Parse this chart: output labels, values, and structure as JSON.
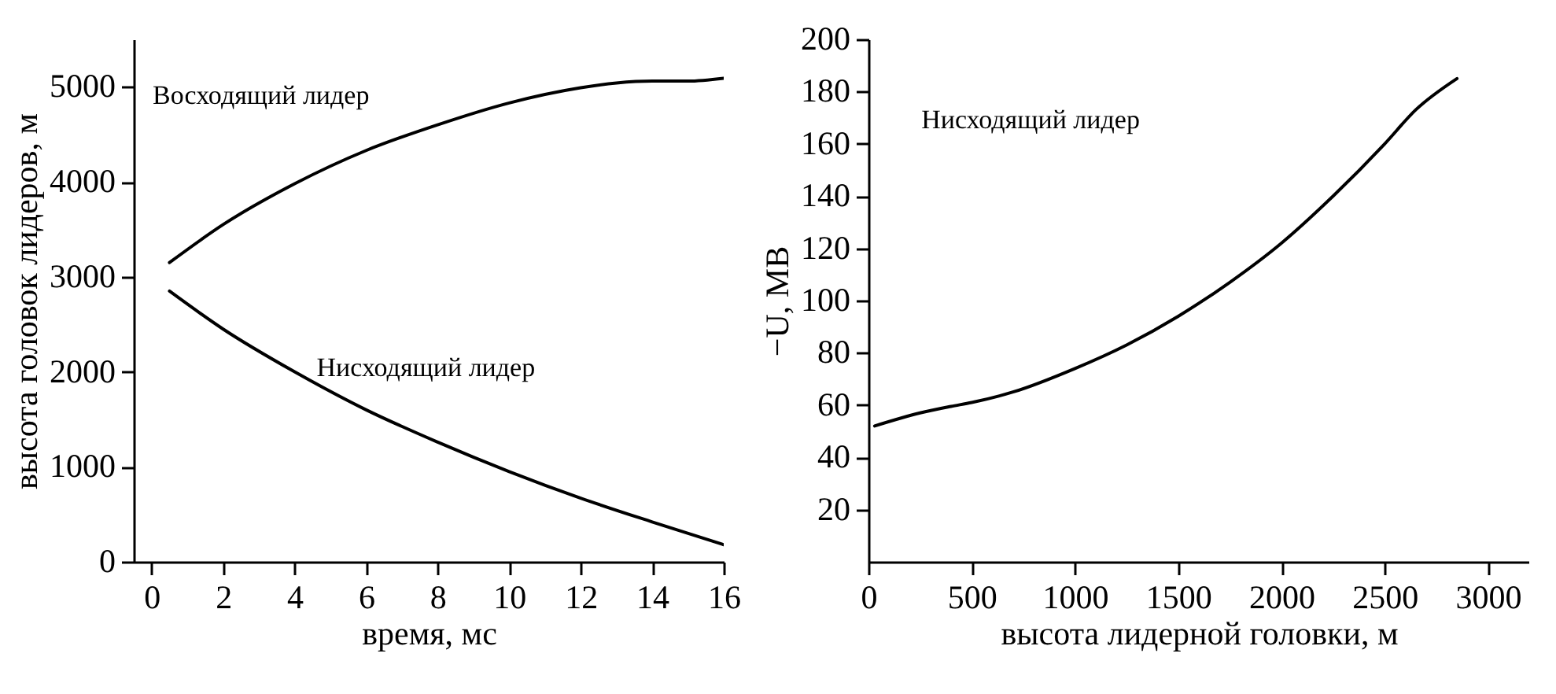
{
  "chart_data": [
    {
      "type": "line",
      "xlabel": "время, мс",
      "ylabel": "высота головок лидеров, м",
      "xlim": [
        -0.5,
        16
      ],
      "ylim": [
        0,
        5500
      ],
      "xticks": [
        0,
        2,
        4,
        6,
        8,
        10,
        12,
        14,
        16
      ],
      "yticks": [
        0,
        1000,
        2000,
        3000,
        4000,
        5000
      ],
      "grid": false,
      "marker": "none",
      "line_style": "solid",
      "series": [
        {
          "color": "#000000",
          "x": [
            0.5,
            2,
            4,
            6,
            8,
            10,
            12,
            13,
            14,
            15,
            16
          ],
          "values": [
            3150,
            3550,
            3980,
            4330,
            4600,
            4830,
            4990,
            5040,
            5060,
            5060,
            5090
          ]
        },
        {
          "color": "#000000",
          "x": [
            0.5,
            2,
            4,
            6,
            8,
            10,
            12,
            14,
            16
          ],
          "values": [
            2850,
            2450,
            2000,
            1600,
            1260,
            950,
            670,
            420,
            180
          ]
        }
      ],
      "annotations": [
        "Восходящий лидер",
        "Нисходящий лидер"
      ]
    },
    {
      "type": "line",
      "xlabel": "высота лидерной головки, м",
      "ylabel": "−U, МВ",
      "xlim": [
        0,
        3200
      ],
      "ylim": [
        0,
        200
      ],
      "xticks": [
        0,
        500,
        1000,
        1500,
        2000,
        2500,
        3000
      ],
      "yticks": [
        20,
        40,
        60,
        80,
        100,
        120,
        140,
        160,
        180,
        200
      ],
      "grid": false,
      "marker": "none",
      "line_style": "solid",
      "series": [
        {
          "color": "#000000",
          "x": [
            30,
            250,
            400,
            500,
            700,
            1000,
            1250,
            1500,
            1750,
            2000,
            2250,
            2500,
            2650,
            2850
          ],
          "values": [
            52,
            57,
            59.5,
            61,
            65,
            74,
            83,
            94,
            107,
            122,
            140,
            160,
            173,
            185
          ]
        }
      ],
      "annotations": [
        "Нисходящий лидер"
      ]
    }
  ]
}
